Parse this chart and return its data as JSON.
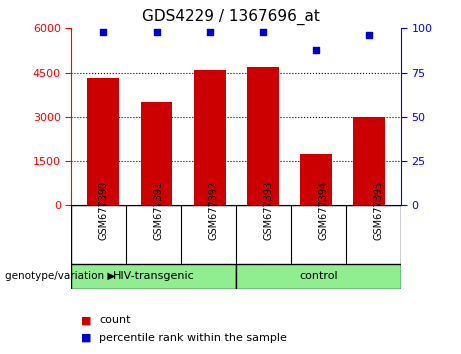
{
  "title": "GDS4229 / 1367696_at",
  "samples": [
    "GSM677390",
    "GSM677391",
    "GSM677392",
    "GSM677393",
    "GSM677394",
    "GSM677395"
  ],
  "counts": [
    4300,
    3500,
    4600,
    4700,
    1750,
    3000
  ],
  "percentile_ranks": [
    98,
    98,
    98,
    98,
    88,
    96
  ],
  "bar_color": "#CC0000",
  "dot_color": "#0000CC",
  "ylim_left": [
    0,
    6000
  ],
  "ylim_right": [
    0,
    100
  ],
  "yticks_left": [
    0,
    1500,
    3000,
    4500,
    6000
  ],
  "yticks_right": [
    0,
    25,
    50,
    75,
    100
  ],
  "grid_values": [
    1500,
    3000,
    4500
  ],
  "background_color": "#ffffff",
  "panel_color": "#d3d3d3",
  "group_color": "#90EE90",
  "group1_label": "HIV-transgenic",
  "group2_label": "control",
  "legend_count_label": "count",
  "legend_percentile_label": "percentile rank within the sample",
  "genotype_label": "genotype/variation"
}
